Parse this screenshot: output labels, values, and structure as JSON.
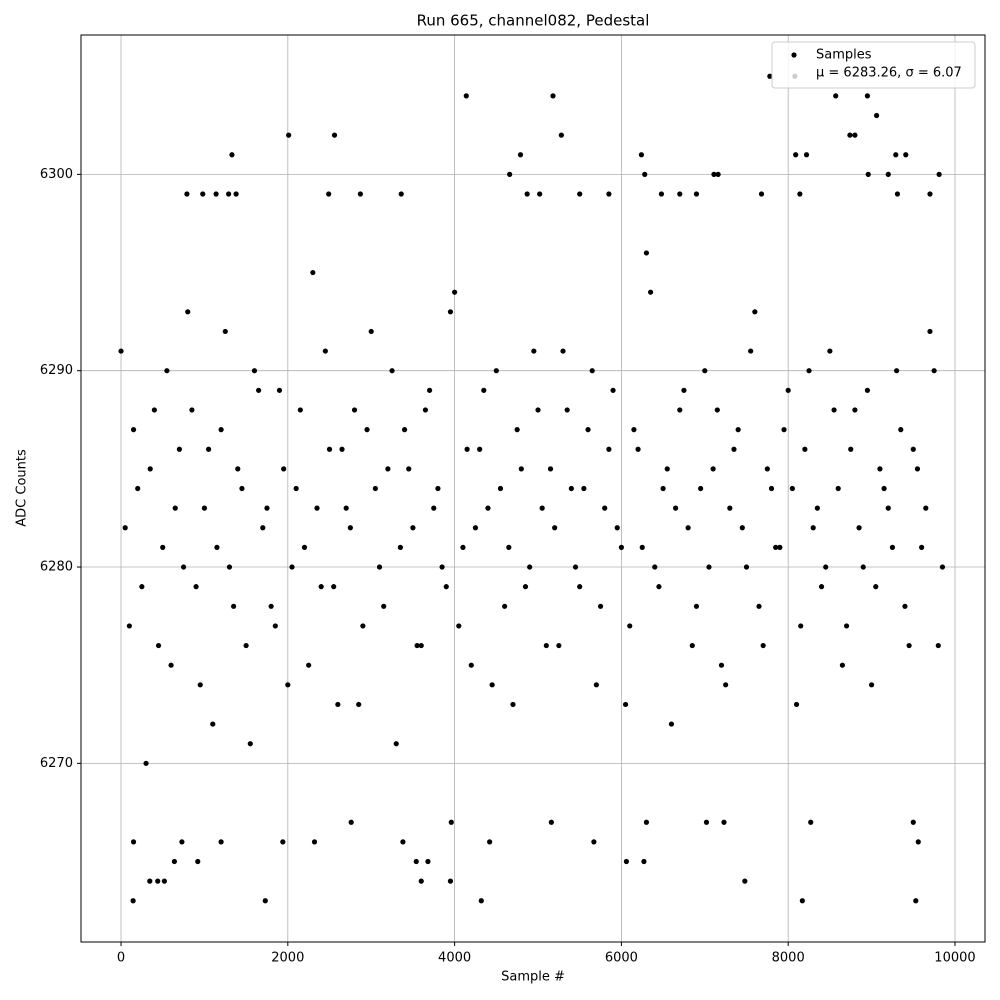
{
  "chart_data": {
    "type": "scatter",
    "title": "Run 665, channel082, Pedestal",
    "x_label": "Sample #",
    "y_label": "ADC Counts",
    "xlim": [
      -480,
      10360
    ],
    "ylim": [
      6260.9,
      6307.1
    ],
    "xticks": [
      0,
      2000,
      4000,
      6000,
      8000,
      10000
    ],
    "yticks": [
      6270,
      6280,
      6290,
      6300
    ],
    "grid": true,
    "legend": "upper right",
    "series": [
      {
        "name": "Samples",
        "stats": "μ = 6283.26, σ = 6.07",
        "color": "#000000",
        "x": [
          0,
          100,
          200,
          300,
          400,
          500,
          600,
          700,
          800,
          900,
          1000,
          1100,
          1200,
          1300,
          1400,
          1500,
          1600,
          1700,
          1800,
          1900,
          2000,
          2100,
          2200,
          2300,
          2400,
          2500,
          2600,
          2700,
          2800,
          2900,
          3000,
          3100,
          3200,
          3300,
          3400,
          3500,
          3600,
          3700,
          3800,
          3900,
          4000,
          4100,
          4200,
          4300,
          4400,
          4500,
          4600,
          4700,
          4800,
          4900,
          5000,
          5100,
          5200,
          5300,
          5400,
          5500,
          5600,
          5700,
          5800,
          5900,
          6000,
          6100,
          6200,
          6300,
          6400,
          6500,
          6600,
          6700,
          6800,
          6900,
          7000,
          7100,
          7200,
          7300,
          7400,
          7500,
          7600,
          7700,
          7800,
          7900,
          8000,
          8100,
          8200,
          8300,
          8400,
          8500,
          8600,
          8700,
          8800,
          8900,
          9000,
          9100,
          9200,
          9300,
          9400,
          9500,
          9600,
          9700,
          9800,
          50,
          150,
          250,
          350,
          450,
          550,
          650,
          750,
          850,
          950,
          1050,
          1150,
          1250,
          1350,
          1450,
          1550,
          1650,
          1750,
          1850,
          1950,
          2050,
          2150,
          2250,
          2350,
          2450,
          2550,
          2650,
          2750,
          2850,
          2950,
          3050,
          3150,
          3250,
          3350,
          3450,
          3550,
          3650,
          3750,
          3850,
          3950,
          4050,
          4150,
          4250,
          4350,
          4450,
          4550,
          4650,
          4750,
          4850,
          4950,
          5050,
          5150,
          5250,
          5350,
          5450,
          5550,
          5650,
          5750,
          5850,
          5950,
          6050,
          6150,
          6250,
          6350,
          6450,
          6550,
          6650,
          6750,
          6850,
          6950,
          7050,
          7150,
          7250,
          7350,
          7450,
          7550,
          7650,
          7750,
          7850,
          7950,
          8050,
          8150,
          8250,
          8350,
          8450,
          8550,
          8650,
          8750,
          8850,
          8950,
          9050,
          9150,
          9250,
          9350,
          9450,
          9550,
          9650,
          9750,
          9850,
          145,
          1730,
          4320,
          8170,
          9530,
          345,
          440,
          520,
          3600,
          3950,
          7480,
          640,
          920,
          3540,
          3680,
          6060,
          6270,
          150,
          1200,
          1940,
          2320,
          3380,
          4420,
          5670,
          9560,
          730,
          6300,
          7230,
          8270,
          9500,
          2760,
          3960,
          5160,
          7020,
          8080,
          7780,
          4140,
          5180,
          8570,
          8950,
          9060,
          2010,
          2560,
          5280,
          8800,
          8740,
          1330,
          4790,
          6240,
          8090,
          8220,
          9290,
          9410,
          4660,
          6280,
          7110,
          7160,
          8960,
          9200,
          9810,
          790,
          980,
          1140,
          1290,
          1380,
          2490,
          2870,
          3360,
          4870,
          5020,
          5500,
          5850,
          6480,
          6700,
          6900,
          7680,
          8140,
          9310,
          9700
        ],
        "values": [
          6291,
          6277,
          6284,
          6270,
          6288,
          6281,
          6275,
          6286,
          6293,
          6279,
          6283,
          6272,
          6287,
          6280,
          6285,
          6276,
          6290,
          6282,
          6278,
          6289,
          6274,
          6284,
          6281,
          6295,
          6279,
          6286,
          6273,
          6283,
          6288,
          6277,
          6292,
          6280,
          6285,
          6271,
          6287,
          6282,
          6276,
          6289,
          6284,
          6279,
          6294,
          6281,
          6275,
          6286,
          6283,
          6290,
          6278,
          6273,
          6285,
          6280,
          6288,
          6276,
          6282,
          6291,
          6284,
          6279,
          6287,
          6274,
          6283,
          6289,
          6281,
          6277,
          6286,
          6296,
          6280,
          6284,
          6272,
          6288,
          6282,
          6278,
          6290,
          6285,
          6275,
          6283,
          6287,
          6280,
          6293,
          6276,
          6284,
          6281,
          6289,
          6273,
          6286,
          6282,
          6279,
          6291,
          6284,
          6277,
          6288,
          6280,
          6274,
          6285,
          6283,
          6290,
          6278,
          6286,
          6281,
          6292,
          6276,
          6282,
          6287,
          6279,
          6285,
          6276,
          6290,
          6283,
          6280,
          6288,
          6274,
          6286,
          6281,
          6292,
          6278,
          6284,
          6271,
          6289,
          6283,
          6277,
          6285,
          6280,
          6288,
          6275,
          6283,
          6291,
          6279,
          6286,
          6282,
          6273,
          6287,
          6284,
          6278,
          6290,
          6281,
          6285,
          6276,
          6288,
          6283,
          6280,
          6293,
          6277,
          6286,
          6282,
          6289,
          6274,
          6284,
          6281,
          6287,
          6279,
          6291,
          6283,
          6285,
          6276,
          6288,
          6280,
          6284,
          6290,
          6278,
          6286,
          6282,
          6273,
          6287,
          6281,
          6294,
          6279,
          6285,
          6283,
          6289,
          6276,
          6284,
          6280,
          6288,
          6274,
          6286,
          6282,
          6291,
          6278,
          6285,
          6281,
          6287,
          6284,
          6277,
          6290,
          6283,
          6280,
          6288,
          6275,
          6286,
          6282,
          6289,
          6279,
          6284,
          6281,
          6287,
          6276,
          6285,
          6283,
          6290,
          6280,
          6263,
          6263,
          6263,
          6263,
          6263,
          6264,
          6264,
          6264,
          6264,
          6264,
          6264,
          6265,
          6265,
          6265,
          6265,
          6265,
          6265,
          6266,
          6266,
          6266,
          6266,
          6266,
          6266,
          6266,
          6266,
          6266,
          6267,
          6267,
          6267,
          6267,
          6267,
          6267,
          6267,
          6267,
          6305,
          6305,
          6304,
          6304,
          6304,
          6304,
          6303,
          6302,
          6302,
          6302,
          6302,
          6302,
          6301,
          6301,
          6301,
          6301,
          6301,
          6301,
          6301,
          6300,
          6300,
          6300,
          6300,
          6300,
          6300,
          6300,
          6299,
          6299,
          6299,
          6299,
          6299,
          6299,
          6299,
          6299,
          6299,
          6299,
          6299,
          6299,
          6299,
          6299,
          6299,
          6299,
          6299,
          6299,
          6299
        ]
      }
    ]
  }
}
